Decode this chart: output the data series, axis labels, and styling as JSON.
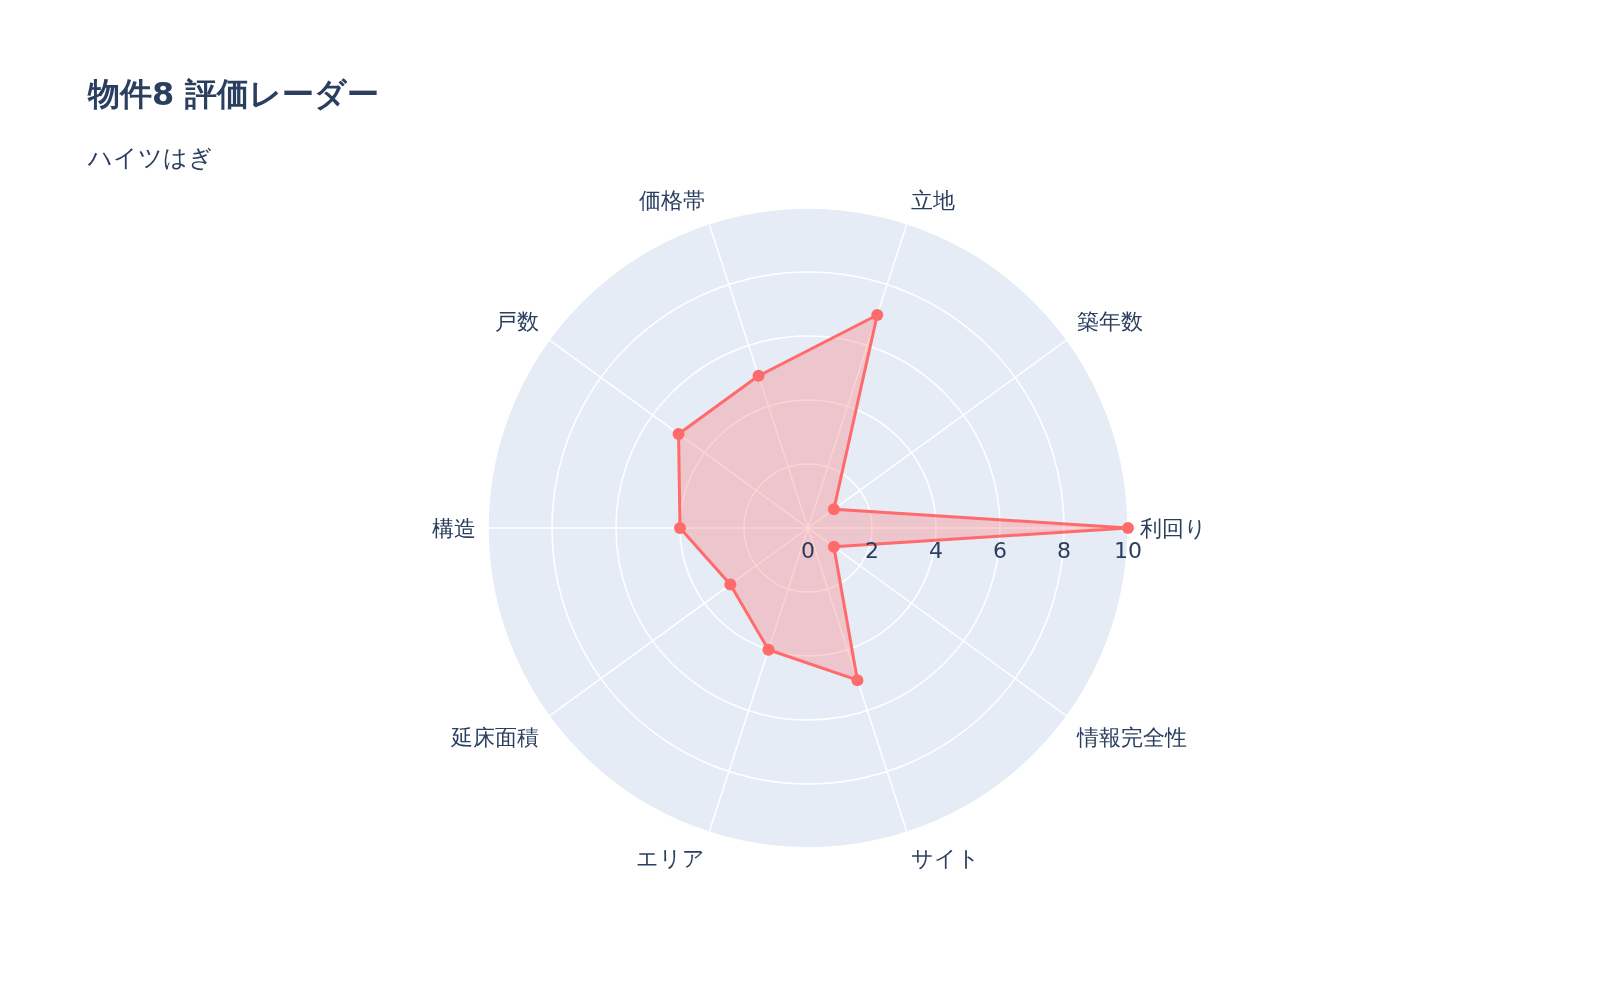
{
  "chart_data": {
    "type": "radar",
    "title": "物件8 評価レーダー",
    "subtitle": "ハイツはぎ",
    "categories": [
      "立地",
      "築年数",
      "利回り",
      "情報完全性",
      "サイト",
      "エリア",
      "延床面積",
      "構造",
      "戸数",
      "価格帯"
    ],
    "series": [
      {
        "color": "#ff6b6b",
        "values": [
          7,
          1,
          10,
          1,
          5,
          4,
          3,
          4,
          5,
          5
        ]
      }
    ],
    "ylim": [
      0,
      10
    ],
    "yticks": [
      0,
      2,
      4,
      6,
      8,
      10
    ],
    "grid": true,
    "marker": "circle"
  }
}
